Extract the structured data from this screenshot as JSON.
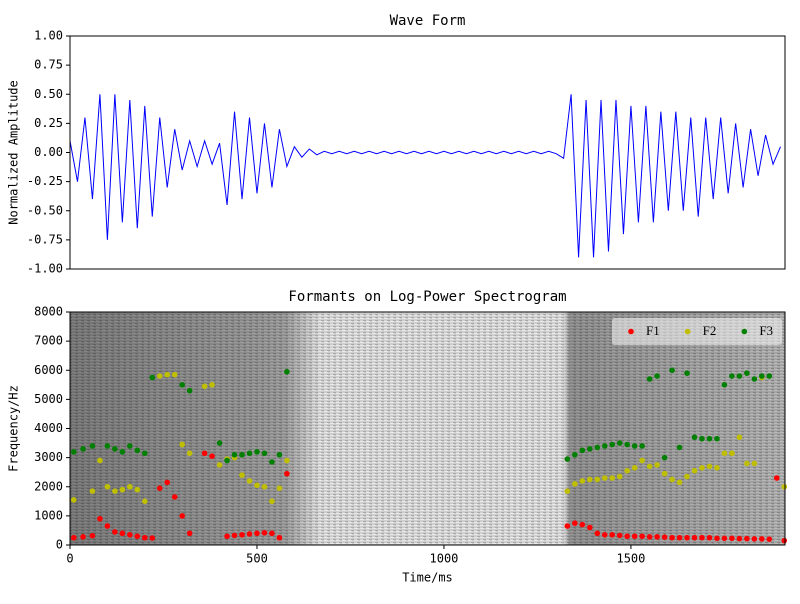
{
  "chart_data": [
    {
      "type": "line",
      "title": "Wave Form",
      "ylabel": "Normalized Amplitude",
      "color": "#0000ff",
      "xlim": [
        0,
        1912
      ],
      "ylim": [
        -1,
        1
      ],
      "yticks": [
        {
          "value": -1,
          "label": "-1.00"
        },
        {
          "value": -0.75,
          "label": "-0.75"
        },
        {
          "value": -0.5,
          "label": "-0.50"
        },
        {
          "value": -0.25,
          "label": "-0.25"
        },
        {
          "value": 0,
          "label": "0.00"
        },
        {
          "value": 0.25,
          "label": "0.25"
        },
        {
          "value": 0.5,
          "label": "0.50"
        },
        {
          "value": 0.75,
          "label": "0.75"
        },
        {
          "value": 1,
          "label": "1.00"
        }
      ],
      "x": [
        0,
        20,
        40,
        60,
        80,
        100,
        120,
        140,
        160,
        180,
        200,
        220,
        240,
        260,
        280,
        300,
        320,
        340,
        360,
        380,
        400,
        420,
        440,
        460,
        480,
        500,
        520,
        540,
        560,
        580,
        600,
        620,
        640,
        660,
        680,
        700,
        720,
        740,
        760,
        780,
        800,
        820,
        840,
        860,
        880,
        900,
        920,
        940,
        960,
        980,
        1000,
        1020,
        1040,
        1060,
        1080,
        1100,
        1120,
        1140,
        1160,
        1180,
        1200,
        1220,
        1240,
        1260,
        1280,
        1300,
        1320,
        1340,
        1360,
        1380,
        1400,
        1420,
        1440,
        1460,
        1480,
        1500,
        1520,
        1540,
        1560,
        1580,
        1600,
        1620,
        1640,
        1660,
        1680,
        1700,
        1720,
        1740,
        1760,
        1780,
        1800,
        1820,
        1840,
        1860,
        1880,
        1900
      ],
      "values": [
        0.1,
        -0.25,
        0.3,
        -0.4,
        0.5,
        -0.75,
        0.5,
        -0.6,
        0.45,
        -0.65,
        0.4,
        -0.55,
        0.3,
        -0.3,
        0.2,
        -0.15,
        0.1,
        -0.12,
        0.1,
        -0.1,
        0.08,
        -0.45,
        0.35,
        -0.4,
        0.3,
        -0.35,
        0.25,
        -0.3,
        0.2,
        -0.12,
        0.05,
        -0.04,
        0.03,
        -0.02,
        0.01,
        -0.01,
        0.01,
        -0.01,
        0.01,
        -0.01,
        0.01,
        -0.01,
        0.01,
        -0.01,
        0.01,
        -0.01,
        0.01,
        -0.01,
        0.01,
        -0.01,
        0.01,
        -0.01,
        0.01,
        -0.01,
        0.01,
        -0.01,
        0.01,
        -0.01,
        0.01,
        -0.01,
        0.01,
        -0.01,
        0.01,
        -0.01,
        0.01,
        -0.01,
        -0.05,
        0.5,
        -0.9,
        0.45,
        -0.9,
        0.45,
        -0.85,
        0.45,
        -0.7,
        0.4,
        -0.6,
        0.4,
        -0.6,
        0.35,
        -0.5,
        0.35,
        -0.5,
        0.3,
        -0.55,
        0.3,
        -0.4,
        0.3,
        -0.35,
        0.25,
        -0.3,
        0.2,
        -0.2,
        0.15,
        -0.1,
        0.05
      ]
    },
    {
      "type": "scatter",
      "title": "Formants on Log-Power Spectrogram",
      "xlabel": "Time/ms",
      "ylabel": "Frequency/Hz",
      "xlim": [
        0,
        1912
      ],
      "ylim": [
        0,
        8000
      ],
      "xticks": [
        0,
        500,
        1000,
        1500
      ],
      "yticks": [
        0,
        1000,
        2000,
        3000,
        4000,
        5000,
        6000,
        7000,
        8000
      ],
      "legend": "upper right",
      "x": [
        10,
        35,
        60,
        80,
        100,
        120,
        140,
        160,
        180,
        200,
        220,
        240,
        260,
        280,
        300,
        320,
        340,
        360,
        380,
        400,
        420,
        440,
        460,
        480,
        500,
        520,
        540,
        560,
        580,
        1330,
        1350,
        1370,
        1390,
        1410,
        1430,
        1450,
        1470,
        1490,
        1510,
        1530,
        1550,
        1570,
        1590,
        1610,
        1630,
        1650,
        1670,
        1690,
        1710,
        1730,
        1750,
        1770,
        1790,
        1810,
        1830,
        1850,
        1870,
        1890,
        1910
      ],
      "series": [
        {
          "name": "F1",
          "color": "#ff0000",
          "values": [
            250,
            280,
            320,
            900,
            650,
            450,
            400,
            350,
            300,
            250,
            240,
            1950,
            2150,
            1650,
            1000,
            400,
            null,
            3150,
            3050,
            null,
            300,
            330,
            350,
            380,
            400,
            420,
            400,
            250,
            2450,
            650,
            750,
            700,
            600,
            400,
            350,
            350,
            330,
            300,
            300,
            300,
            280,
            280,
            270,
            250,
            250,
            250,
            250,
            250,
            250,
            230,
            230,
            230,
            220,
            220,
            210,
            210,
            200,
            2300,
            150
          ]
        },
        {
          "name": "F2",
          "color": "#bfbf00",
          "values": [
            1550,
            null,
            1850,
            2900,
            2000,
            1850,
            1900,
            2000,
            1900,
            1500,
            null,
            5800,
            5850,
            5850,
            3450,
            3150,
            null,
            5450,
            5500,
            2750,
            2950,
            3000,
            2400,
            2200,
            2050,
            2000,
            1500,
            1950,
            2900,
            1850,
            2100,
            2200,
            2250,
            2250,
            2300,
            2300,
            2350,
            2550,
            2650,
            2900,
            2700,
            2750,
            2450,
            2250,
            2150,
            2350,
            2550,
            2650,
            2700,
            2650,
            3150,
            3150,
            3700,
            2800,
            2800,
            5750,
            null,
            null,
            2000
          ]
        },
        {
          "name": "F3",
          "color": "#008000",
          "values": [
            3200,
            3300,
            3400,
            null,
            3400,
            3300,
            3200,
            3400,
            3250,
            3150,
            5750,
            null,
            null,
            null,
            5500,
            5300,
            null,
            null,
            null,
            3500,
            2900,
            3100,
            3100,
            3150,
            3200,
            3150,
            2850,
            3100,
            5950,
            2950,
            3100,
            3250,
            3300,
            3350,
            3400,
            3450,
            3500,
            3450,
            3400,
            3400,
            5700,
            5800,
            3000,
            6000,
            3350,
            5900,
            3700,
            3650,
            3650,
            3650,
            5500,
            5800,
            5800,
            5900,
            5700,
            5800,
            5800,
            null,
            null
          ]
        }
      ]
    }
  ]
}
